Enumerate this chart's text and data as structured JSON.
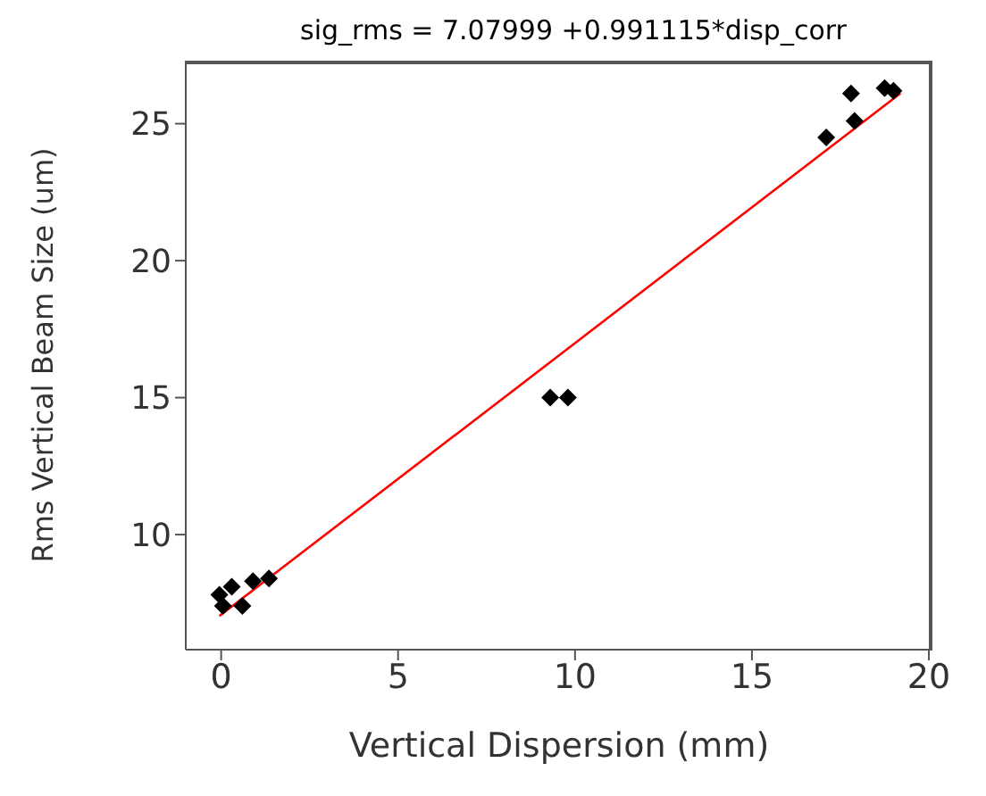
{
  "chart_data": {
    "type": "scatter",
    "title": "sig_rms  =  7.07999 +0.991115*disp_corr",
    "xlabel": "Vertical Dispersion (mm)",
    "ylabel": "Rms Vertical Beam Size (um)",
    "xlim": [
      -1,
      20.1
    ],
    "xticks": [
      0,
      5,
      10,
      15,
      20
    ],
    "ylim": [
      5.8,
      27.3
    ],
    "yticks": [
      10,
      15,
      20,
      25
    ],
    "grid": false,
    "marker": "diamond",
    "series": [
      {
        "color": "#000000",
        "x": [
          -0.05,
          0.05,
          0.3,
          0.6,
          0.9,
          1.35,
          9.3,
          9.8,
          17.1,
          17.8,
          17.9,
          18.75,
          19.0
        ],
        "values": [
          7.8,
          7.4,
          8.1,
          7.4,
          8.3,
          8.4,
          15.0,
          15.0,
          24.5,
          26.1,
          25.1,
          26.3,
          26.2
        ]
      },
      {
        "type": "line",
        "color": "#ff0000",
        "marker": "none",
        "x": [
          -0.05,
          19.2
        ],
        "values": [
          7.03,
          26.11
        ]
      }
    ]
  }
}
